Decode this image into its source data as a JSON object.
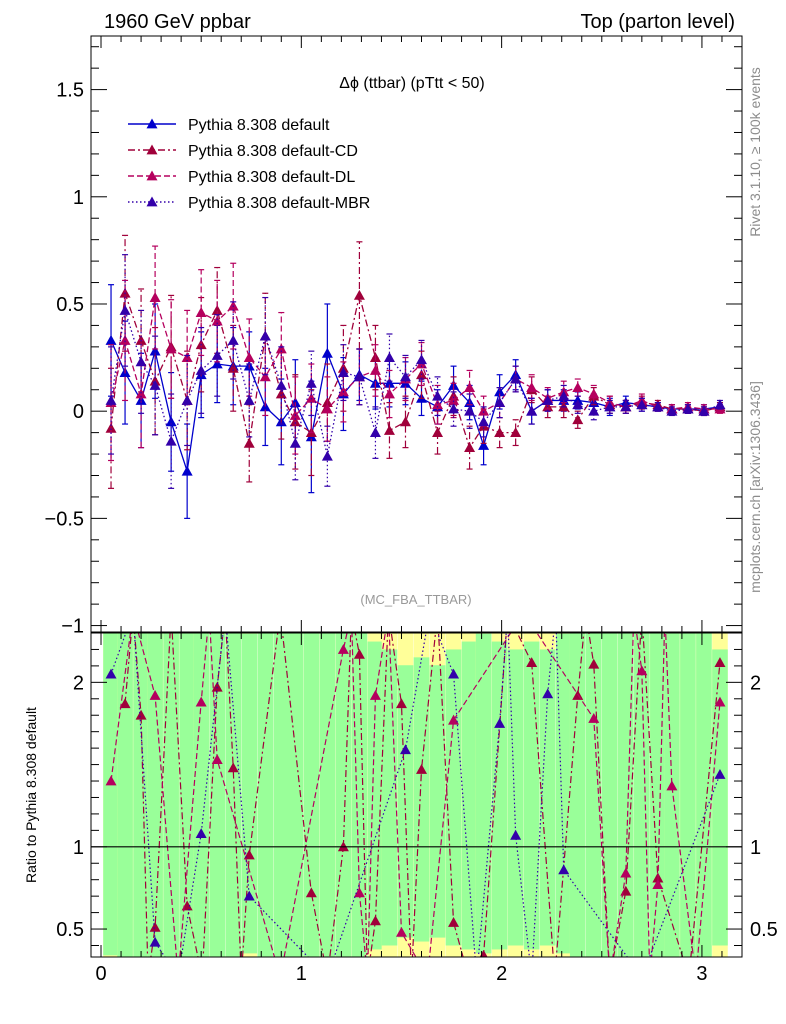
{
  "header": {
    "left": "1960 GeV ppbar",
    "right": "Top (parton level)"
  },
  "side_text": {
    "rivet": "Rivet 3.1.10, ≥ 100k events",
    "mcplots": "mcplots.cern.ch [arXiv:1306.3436]"
  },
  "chart_data": {
    "type": "line",
    "title": "Δϕ (ttbar) (pTtt < 50)",
    "analysis_tag": "(MC_FBA_TTBAR)",
    "xlabel": "",
    "ylabel": "",
    "ratio_ylabel": "Ratio to Pythia 8.308 default",
    "xlim": [
      -0.05,
      3.2
    ],
    "ylim": [
      -1.03,
      1.75
    ],
    "ratio_ylim": [
      0.33,
      2.3
    ],
    "xticks": [
      "0",
      "1",
      "2",
      "3"
    ],
    "yticks": [
      "−1",
      "−0.5",
      "0",
      "0.5",
      "1",
      "1.5"
    ],
    "ratio_yticks": [
      "0.5",
      "1",
      "2"
    ],
    "legend_position": "top-left",
    "series": [
      {
        "name": "Pythia 8.308 default",
        "color": "#0000cc",
        "dash": "",
        "x": [
          0.05,
          0.12,
          0.2,
          0.27,
          0.35,
          0.43,
          0.5,
          0.58,
          0.66,
          0.74,
          0.82,
          0.9,
          0.97,
          1.05,
          1.13,
          1.21,
          1.29,
          1.37,
          1.44,
          1.52,
          1.6,
          1.68,
          1.76,
          1.84,
          1.91,
          1.99,
          2.07,
          2.15,
          2.23,
          2.31,
          2.38,
          2.46,
          2.54,
          2.62,
          2.7,
          2.78,
          2.85,
          2.93,
          3.01,
          3.09
        ],
        "y": [
          0.33,
          0.18,
          0.05,
          0.28,
          -0.05,
          -0.28,
          0.17,
          0.22,
          0.21,
          0.21,
          0.02,
          -0.05,
          0.04,
          -0.12,
          0.27,
          0.08,
          0.17,
          0.13,
          0.13,
          0.13,
          0.06,
          0.02,
          0.12,
          0.04,
          -0.16,
          0.09,
          0.17,
          0.0,
          0.05,
          0.05,
          0.05,
          0.04,
          0.02,
          0.04,
          0.03,
          0.02,
          0.01,
          0.01,
          0.01,
          0.02
        ],
        "err": [
          0.26,
          0.24,
          0.22,
          0.22,
          0.23,
          0.22,
          0.2,
          0.18,
          0.18,
          0.16,
          0.18,
          0.2,
          0.2,
          0.26,
          0.23,
          0.17,
          0.12,
          0.12,
          0.11,
          0.1,
          0.08,
          0.08,
          0.09,
          0.08,
          0.09,
          0.08,
          0.07,
          0.06,
          0.05,
          0.05,
          0.04,
          0.04,
          0.04,
          0.03,
          0.03,
          0.02,
          0.02,
          0.02,
          0.02,
          0.02
        ]
      },
      {
        "name": "Pythia 8.308 default-CD",
        "color": "#a0003a",
        "dash": "7 3 2 3",
        "x": [
          0.05,
          0.12,
          0.2,
          0.27,
          0.35,
          0.43,
          0.5,
          0.58,
          0.66,
          0.74,
          0.82,
          0.9,
          0.97,
          1.05,
          1.13,
          1.21,
          1.29,
          1.37,
          1.44,
          1.52,
          1.6,
          1.68,
          1.76,
          1.84,
          1.91,
          1.99,
          2.07,
          2.15,
          2.23,
          2.31,
          2.38,
          2.46,
          2.54,
          2.62,
          2.7,
          2.78,
          2.85,
          2.93,
          3.01,
          3.09
        ],
        "y": [
          -0.08,
          0.55,
          0.33,
          0.14,
          0.3,
          0.05,
          0.31,
          0.47,
          0.2,
          -0.15,
          0.35,
          0.08,
          -0.05,
          -0.1,
          0.04,
          0.2,
          0.54,
          0.25,
          -0.09,
          -0.05,
          0.17,
          -0.1,
          0.07,
          -0.17,
          -0.07,
          -0.1,
          -0.1,
          0.1,
          0.02,
          0.02,
          -0.04,
          0.07,
          0.03,
          0.02,
          0.04,
          0.03,
          0.01,
          0.01,
          0.0,
          0.02
        ],
        "err": [
          0.28,
          0.27,
          0.24,
          0.25,
          0.24,
          0.23,
          0.22,
          0.2,
          0.2,
          0.18,
          0.2,
          0.21,
          0.22,
          0.2,
          0.18,
          0.2,
          0.25,
          0.15,
          0.13,
          0.12,
          0.11,
          0.1,
          0.09,
          0.1,
          0.08,
          0.07,
          0.06,
          0.06,
          0.05,
          0.05,
          0.04,
          0.04,
          0.04,
          0.03,
          0.03,
          0.02,
          0.02,
          0.02,
          0.02,
          0.02
        ]
      },
      {
        "name": "Pythia 8.308 default-DL",
        "color": "#b5005e",
        "dash": "6 3",
        "x": [
          0.05,
          0.12,
          0.2,
          0.27,
          0.35,
          0.43,
          0.5,
          0.58,
          0.66,
          0.74,
          0.82,
          0.9,
          0.97,
          1.05,
          1.13,
          1.21,
          1.29,
          1.37,
          1.44,
          1.52,
          1.6,
          1.68,
          1.76,
          1.84,
          1.91,
          1.99,
          2.07,
          2.15,
          2.23,
          2.31,
          2.38,
          2.46,
          2.54,
          2.62,
          2.7,
          2.78,
          2.85,
          2.93,
          3.01,
          3.09
        ],
        "y": [
          0.04,
          0.33,
          0.08,
          0.53,
          0.29,
          0.25,
          0.46,
          0.42,
          0.49,
          0.25,
          0.16,
          0.29,
          -0.02,
          0.06,
          0.01,
          0.09,
          0.16,
          0.19,
          0.08,
          0.15,
          0.22,
          0.03,
          0.05,
          0.11,
          0.0,
          0.04,
          0.15,
          0.11,
          0.06,
          0.09,
          0.11,
          0.08,
          0.04,
          0.02,
          0.05,
          0.02,
          0.01,
          0.02,
          0.01,
          0.01
        ],
        "err": [
          0.27,
          0.28,
          0.25,
          0.24,
          0.23,
          0.22,
          0.2,
          0.19,
          0.2,
          0.18,
          0.18,
          0.17,
          0.18,
          0.16,
          0.15,
          0.14,
          0.13,
          0.12,
          0.11,
          0.1,
          0.1,
          0.09,
          0.08,
          0.08,
          0.07,
          0.07,
          0.06,
          0.06,
          0.05,
          0.05,
          0.04,
          0.04,
          0.03,
          0.03,
          0.03,
          0.02,
          0.02,
          0.02,
          0.02,
          0.02
        ]
      },
      {
        "name": "Pythia 8.308 default-MBR",
        "color": "#3300aa",
        "dash": "1.5 2.5",
        "x": [
          0.05,
          0.12,
          0.2,
          0.27,
          0.35,
          0.43,
          0.5,
          0.58,
          0.66,
          0.74,
          0.82,
          0.9,
          0.97,
          1.05,
          1.13,
          1.21,
          1.29,
          1.37,
          1.44,
          1.52,
          1.6,
          1.68,
          1.76,
          1.84,
          1.91,
          1.99,
          2.07,
          2.15,
          2.23,
          2.31,
          2.38,
          2.46,
          2.54,
          2.62,
          2.7,
          2.78,
          2.85,
          2.93,
          3.01,
          3.09
        ],
        "y": [
          0.05,
          0.47,
          0.23,
          0.12,
          -0.14,
          0.05,
          0.19,
          0.26,
          0.33,
          0.05,
          0.35,
          0.12,
          -0.15,
          0.13,
          -0.21,
          0.18,
          0.16,
          -0.1,
          0.25,
          0.16,
          0.24,
          0.07,
          0.01,
          0.0,
          -0.05,
          0.04,
          0.15,
          0.0,
          0.05,
          0.07,
          0.03,
          0.0,
          0.02,
          0.02,
          0.03,
          0.02,
          0.0,
          0.01,
          0.0,
          0.03
        ],
        "err": [
          0.25,
          0.26,
          0.24,
          0.23,
          0.22,
          0.21,
          0.2,
          0.19,
          0.18,
          0.17,
          0.18,
          0.18,
          0.17,
          0.15,
          0.14,
          0.13,
          0.13,
          0.12,
          0.11,
          0.1,
          0.09,
          0.09,
          0.08,
          0.08,
          0.07,
          0.07,
          0.06,
          0.06,
          0.05,
          0.05,
          0.04,
          0.04,
          0.03,
          0.03,
          0.03,
          0.02,
          0.02,
          0.02,
          0.02,
          0.02
        ]
      }
    ],
    "ratio_series": [
      {
        "name": "Pythia 8.308 default-CD",
        "x": [
          0.12,
          0.2,
          0.27,
          0.43,
          0.58,
          0.66,
          0.74,
          1.05,
          1.21,
          1.29,
          1.37,
          1.5,
          1.6,
          1.76,
          1.91,
          2.15,
          2.38,
          2.46,
          2.62,
          2.78,
          3.09
        ],
        "y": [
          1.87,
          1.8,
          0.51,
          0.64,
          1.97,
          1.48,
          0.95,
          0.72,
          1.0,
          2.17,
          0.55,
          1.87,
          1.47,
          0.54,
          0.34,
          2.12,
          1.92,
          2.11,
          0.73,
          0.81,
          2.12
        ]
      },
      {
        "name": "Pythia 8.308 default-DL",
        "x": [
          0.05,
          0.27,
          0.5,
          0.58,
          1.21,
          1.29,
          1.37,
          1.5,
          1.76,
          2.46,
          2.62,
          2.7,
          2.78,
          2.85,
          3.09
        ],
        "y": [
          1.4,
          1.92,
          1.88,
          1.53,
          2.2,
          0.72,
          1.92,
          0.48,
          1.77,
          1.78,
          0.84,
          2.07,
          0.77,
          1.37,
          1.88
        ]
      },
      {
        "name": "Pythia 8.308 default-MBR",
        "x": [
          0.05,
          0.27,
          0.5,
          0.74,
          1.52,
          1.76,
          1.99,
          2.07,
          2.23,
          2.31,
          3.09
        ],
        "y": [
          2.05,
          0.42,
          1.08,
          0.7,
          1.59,
          2.05,
          1.75,
          1.07,
          1.93,
          0.86,
          1.44
        ]
      }
    ],
    "ratio_band_halfwidth": [
      0.55,
      0.58,
      0.62,
      0.6,
      0.63,
      0.65,
      0.6,
      0.58,
      0.56,
      0.54,
      0.56,
      0.6,
      0.62,
      0.64,
      0.62,
      0.6,
      0.58,
      0.52,
      0.5,
      0.46,
      0.48,
      0.46,
      0.5,
      0.52,
      0.54,
      0.52,
      0.5,
      0.52,
      0.5,
      0.54,
      0.56,
      0.58,
      0.6,
      0.62,
      0.66,
      0.64,
      0.6,
      0.58,
      0.56,
      0.5
    ]
  }
}
